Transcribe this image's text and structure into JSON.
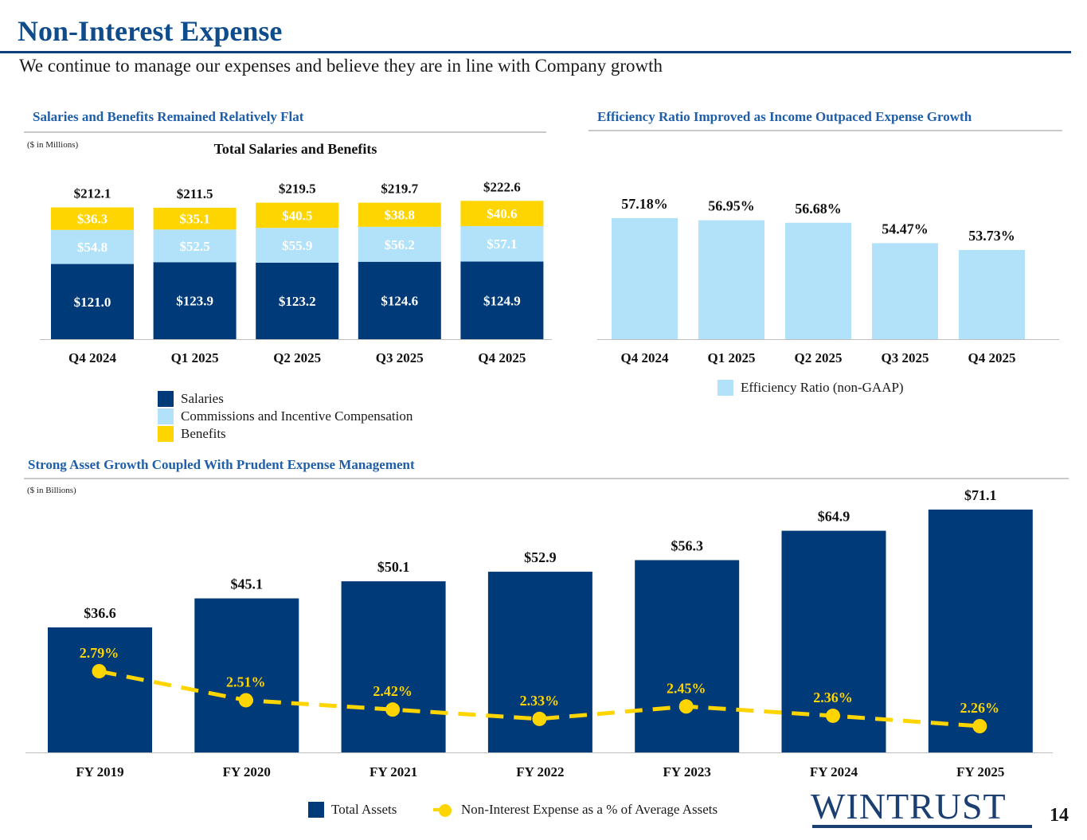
{
  "header": {
    "title": "Non-Interest Expense",
    "subtitle": "We continue to manage our expenses and believe they are in line with Company growth"
  },
  "sections": {
    "salaries": {
      "heading": "Salaries and Benefits Remained Relatively Flat",
      "unit_note": "($ in Millions)"
    },
    "efficiency": {
      "heading": "Efficiency Ratio Improved as Income Outpaced Expense Growth"
    },
    "assets": {
      "heading": "Strong Asset Growth Coupled With Prudent Expense Management",
      "unit_note": "($ in Billions)"
    }
  },
  "footer": {
    "logo_text": "WINTRUST",
    "page_number": "14"
  },
  "colors": {
    "navy": "#003a78",
    "light_blue": "#b1e2fa",
    "yellow": "#ffd500",
    "title_blue": "#0f4c8c",
    "section_blue": "#1f5ea8"
  },
  "chart_data": [
    {
      "type": "bar",
      "stacked": true,
      "title": "Total Salaries and Benefits",
      "categories": [
        "Q4 2024",
        "Q1 2025",
        "Q2 2025",
        "Q3 2025",
        "Q4 2025"
      ],
      "series": [
        {
          "name": "Salaries",
          "values": [
            121.0,
            123.9,
            123.2,
            124.6,
            124.9
          ],
          "labels": [
            "$121.0",
            "$123.9",
            "$123.2",
            "$124.6",
            "$124.9"
          ],
          "color": "#003a78",
          "label_color": "#ffffff"
        },
        {
          "name": "Commissions and Incentive Compensation",
          "values": [
            54.8,
            52.5,
            55.9,
            56.2,
            57.1
          ],
          "labels": [
            "$54.8",
            "$52.5",
            "$55.9",
            "$56.2",
            "$57.1"
          ],
          "color": "#b1e2fa",
          "label_color": "#ffffff"
        },
        {
          "name": "Benefits",
          "values": [
            36.3,
            35.1,
            40.5,
            38.8,
            40.6
          ],
          "labels": [
            "$36.3",
            "$35.1",
            "$40.5",
            "$38.8",
            "$40.6"
          ],
          "color": "#ffd500",
          "label_color": "#ffffff"
        }
      ],
      "totals": [
        212.1,
        211.5,
        219.5,
        219.7,
        222.6
      ],
      "total_labels": [
        "$212.1",
        "$211.5",
        "$219.5",
        "$219.7",
        "$222.6"
      ],
      "ylim": [
        0,
        230
      ],
      "legend_position": "bottom"
    },
    {
      "type": "bar",
      "categories": [
        "Q4 2024",
        "Q1 2025",
        "Q2 2025",
        "Q3 2025",
        "Q4 2025"
      ],
      "series": [
        {
          "name": "Efficiency Ratio (non-GAAP)",
          "values": [
            57.18,
            56.95,
            56.68,
            54.47,
            53.73
          ],
          "labels": [
            "57.18%",
            "56.95%",
            "56.68%",
            "54.47%",
            "53.73%"
          ],
          "color": "#b1e2fa"
        }
      ],
      "legend_position": "bottom"
    },
    {
      "type": "bar",
      "categories": [
        "FY 2019",
        "FY 2020",
        "FY 2021",
        "FY 2022",
        "FY 2023",
        "FY 2024",
        "FY 2025"
      ],
      "series": [
        {
          "name": "Total Assets",
          "type": "bar",
          "values": [
            36.6,
            45.1,
            50.1,
            52.9,
            56.3,
            64.9,
            71.1
          ],
          "labels": [
            "$36.6",
            "$45.1",
            "$50.1",
            "$52.9",
            "$56.3",
            "$64.9",
            "$71.1"
          ],
          "color": "#003a78",
          "axis": "left"
        },
        {
          "name": "Non-Interest Expense as a % of Average Assets",
          "type": "line",
          "style": "dashed",
          "values": [
            2.79,
            2.51,
            2.42,
            2.33,
            2.45,
            2.36,
            2.26
          ],
          "labels": [
            "2.79%",
            "2.51%",
            "2.42%",
            "2.33%",
            "2.45%",
            "2.36%",
            "2.26%"
          ],
          "color": "#ffd500",
          "axis": "right"
        }
      ],
      "ylim": [
        0,
        71.1
      ],
      "y2lim": [
        2.0,
        3.0
      ],
      "legend_position": "bottom"
    }
  ]
}
